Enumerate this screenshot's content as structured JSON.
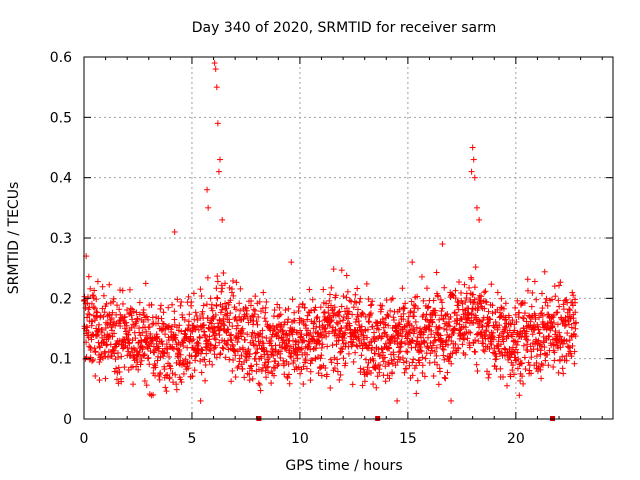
{
  "chart_data": {
    "type": "scatter",
    "title": "Day 340 of 2020, SRMTID for receiver sarm",
    "xlabel": "GPS time / hours",
    "ylabel": "SRMTID / TECUs",
    "xlim": [
      0,
      24.5
    ],
    "ylim": [
      0,
      0.6
    ],
    "xticks": [
      0,
      5,
      10,
      15,
      20
    ],
    "yticks": [
      0,
      0.1,
      0.2,
      0.3,
      0.4,
      0.5,
      0.6
    ],
    "grid": true,
    "marker": "+",
    "color": "#ff0000",
    "baseline_markers_x": [
      8.1,
      13.6,
      21.7
    ],
    "series": [
      {
        "name": "SRMTID",
        "profile": {
          "x": [
            0,
            0.5,
            1,
            1.5,
            2,
            3,
            4,
            4.5,
            5,
            5.5,
            5.8,
            6.0,
            6.2,
            6.4,
            6.6,
            7,
            8,
            9,
            9.5,
            10,
            11,
            12,
            13,
            14,
            15,
            16,
            17,
            17.5,
            17.8,
            18.0,
            18.2,
            18.5,
            19,
            20,
            21,
            22,
            22.8
          ],
          "median": [
            0.16,
            0.15,
            0.14,
            0.14,
            0.14,
            0.13,
            0.12,
            0.12,
            0.12,
            0.13,
            0.15,
            0.16,
            0.17,
            0.17,
            0.15,
            0.14,
            0.13,
            0.13,
            0.13,
            0.13,
            0.14,
            0.15,
            0.14,
            0.13,
            0.13,
            0.14,
            0.15,
            0.16,
            0.17,
            0.18,
            0.17,
            0.15,
            0.14,
            0.13,
            0.14,
            0.15,
            0.16
          ]
        },
        "highlights": [
          {
            "x": 6.1,
            "y": 0.58
          },
          {
            "x": 6.05,
            "y": 0.59
          },
          {
            "x": 6.15,
            "y": 0.55
          },
          {
            "x": 6.2,
            "y": 0.49
          },
          {
            "x": 6.3,
            "y": 0.43
          },
          {
            "x": 6.25,
            "y": 0.41
          },
          {
            "x": 5.7,
            "y": 0.38
          },
          {
            "x": 5.75,
            "y": 0.35
          },
          {
            "x": 6.4,
            "y": 0.33
          },
          {
            "x": 4.2,
            "y": 0.31
          },
          {
            "x": 18.0,
            "y": 0.45
          },
          {
            "x": 18.05,
            "y": 0.43
          },
          {
            "x": 17.95,
            "y": 0.41
          },
          {
            "x": 18.1,
            "y": 0.4
          },
          {
            "x": 18.2,
            "y": 0.35
          },
          {
            "x": 18.3,
            "y": 0.33
          },
          {
            "x": 16.6,
            "y": 0.29
          },
          {
            "x": 9.6,
            "y": 0.26
          },
          {
            "x": 0.1,
            "y": 0.27
          },
          {
            "x": 15.2,
            "y": 0.26
          },
          {
            "x": 17.0,
            "y": 0.03
          },
          {
            "x": 5.4,
            "y": 0.03
          },
          {
            "x": 14.5,
            "y": 0.03
          },
          {
            "x": 3.2,
            "y": 0.04
          }
        ],
        "n_points": 2300
      }
    ]
  }
}
